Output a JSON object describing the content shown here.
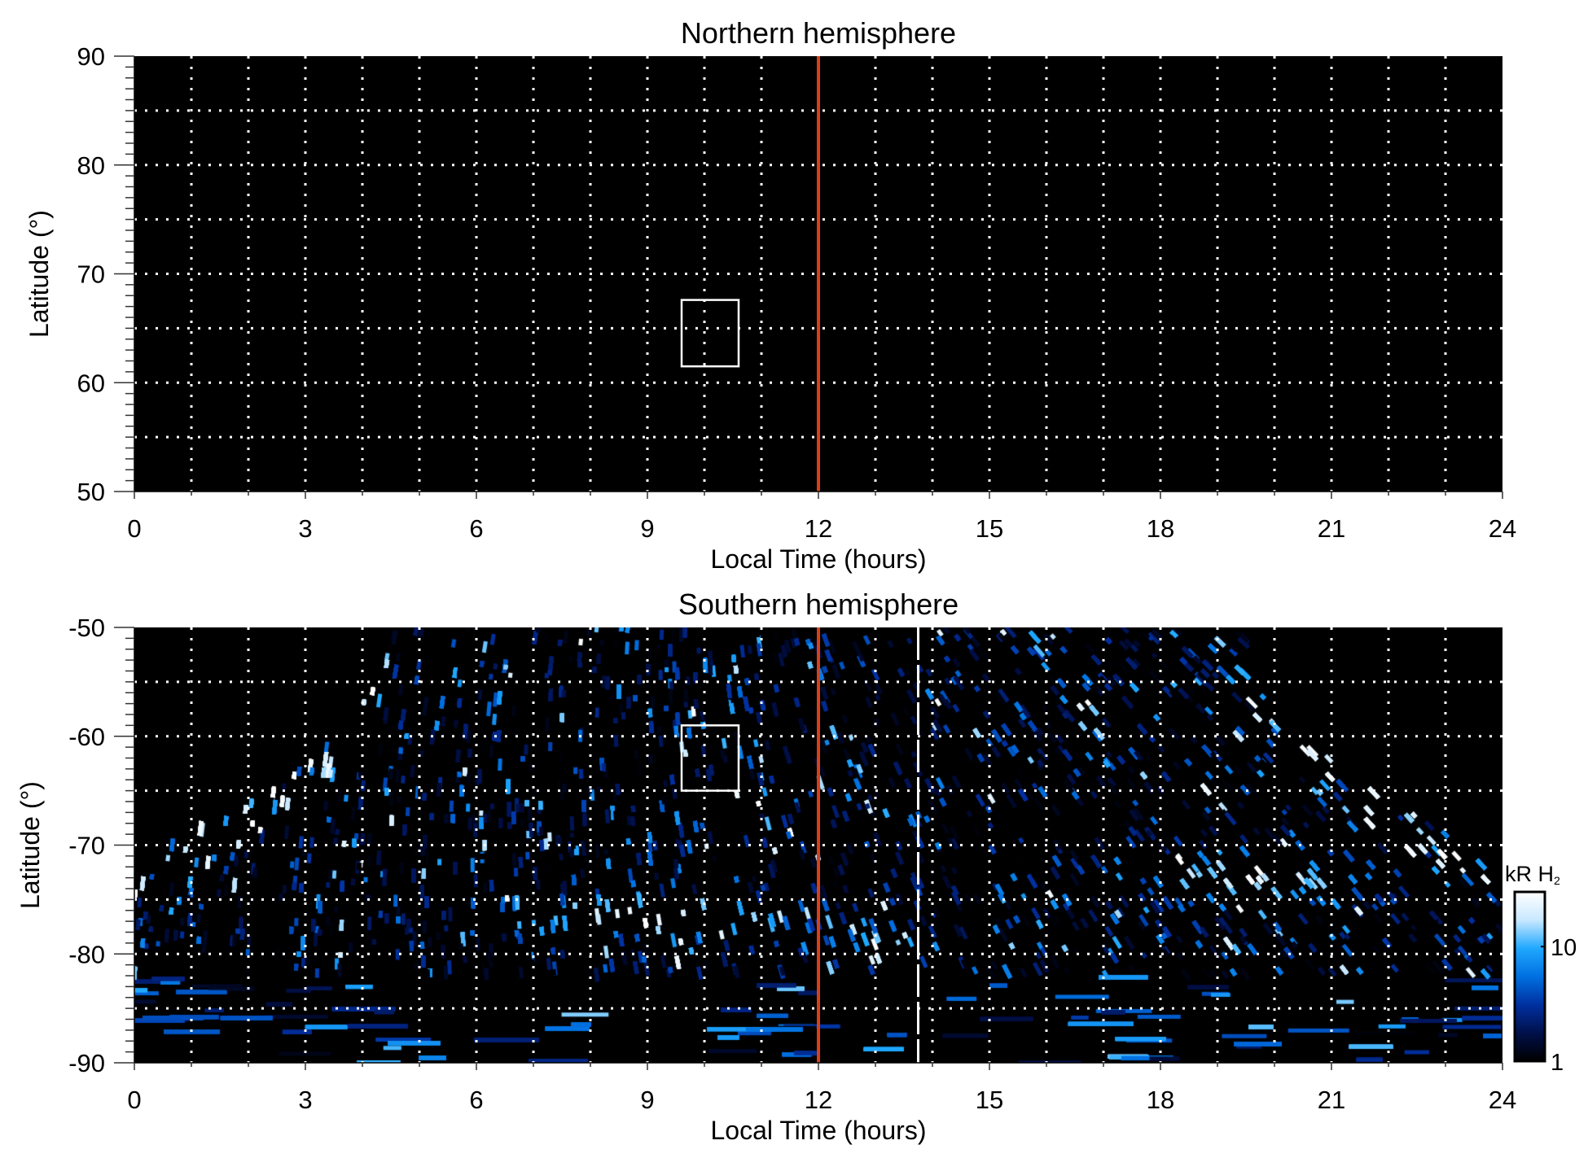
{
  "chart_data": [
    {
      "type": "heatmap",
      "title": "Northern hemisphere",
      "xlabel": "Local Time (hours)",
      "ylabel": "Latitude (°)",
      "xlim": [
        0,
        24
      ],
      "ylim": [
        50,
        90
      ],
      "xticks": [
        0,
        3,
        6,
        9,
        12,
        15,
        18,
        21,
        24
      ],
      "yticks": [
        50,
        60,
        70,
        80,
        90
      ],
      "grid": {
        "x_step": 1,
        "y_step": 5,
        "style": "dotted",
        "color": "#ffffff"
      },
      "vline": {
        "x": 12,
        "color": "#d9401a"
      },
      "box": {
        "x": [
          9.6,
          10.6
        ],
        "y": [
          61.5,
          67.6
        ]
      },
      "values": "no emission (all zero)"
    },
    {
      "type": "heatmap",
      "title": "Southern hemisphere",
      "xlabel": "Local Time (hours)",
      "ylabel": "Latitude (°)",
      "xlim": [
        0,
        24
      ],
      "ylim": [
        -90,
        -50
      ],
      "xticks": [
        0,
        3,
        6,
        9,
        12,
        15,
        18,
        21,
        24
      ],
      "yticks": [
        -90,
        -80,
        -70,
        -60,
        -50
      ],
      "grid": {
        "x_step": 1,
        "y_step": 5,
        "style": "dotted",
        "color": "#ffffff"
      },
      "vline": {
        "x": 12,
        "color": "#d9401a"
      },
      "dashed_line": {
        "x": 13.75,
        "color": "#ffffff"
      },
      "box": {
        "x": [
          9.6,
          10.6
        ],
        "y": [
          -65,
          -59
        ]
      },
      "coverage_edge": {
        "lt_full": [
          4.5,
          19.5
        ],
        "lat_at_lt0_24": -71
      },
      "bright_features": [
        {
          "lt": [
            7,
            11.3
          ],
          "lat": [
            -78,
            -75
          ],
          "kR": 30
        },
        {
          "lt": [
            12.7,
            13.5
          ],
          "lat": [
            -81,
            -78
          ],
          "kR": 30
        },
        {
          "lt": [
            18,
            21.5
          ],
          "lat": [
            -75,
            -71
          ],
          "kR": 20
        }
      ],
      "colorbar": {
        "label": "kR H",
        "label_sub": "2",
        "scale": "log",
        "range": [
          1,
          30
        ],
        "ticks": [
          1,
          10
        ],
        "tick_labels": [
          "1",
          "10"
        ],
        "colors": [
          "#000000",
          "#00104a",
          "#0030a0",
          "#0070e0",
          "#20a8ff",
          "#c8e8ff",
          "#ffffff"
        ]
      }
    }
  ]
}
